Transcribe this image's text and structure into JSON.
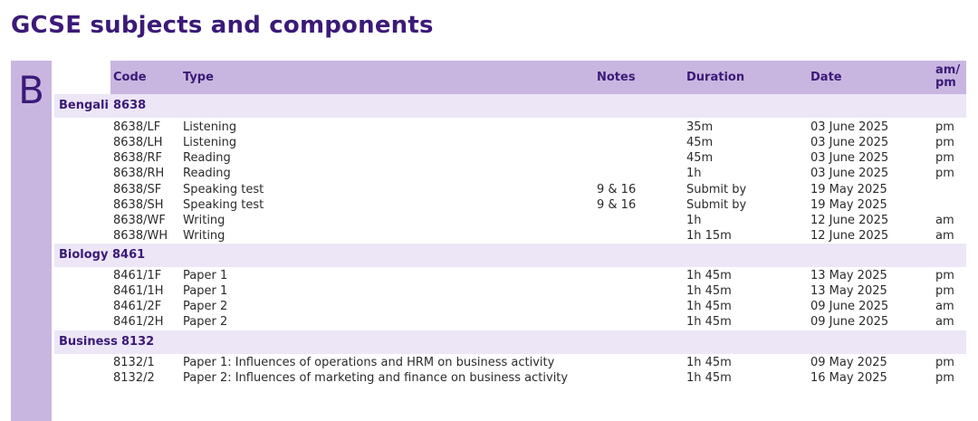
{
  "page_title": "GCSE subjects and components",
  "section_letter": "B",
  "columns": {
    "code": "Code",
    "type": "Type",
    "notes": "Notes",
    "duration": "Duration",
    "date": "Date",
    "ampm_line1": "am/",
    "ampm_line2": "pm"
  },
  "subjects": [
    {
      "name": "Bengali",
      "code": "8638",
      "rows": [
        {
          "code": "8638/LF",
          "type": "Listening",
          "notes": "",
          "duration": "35m",
          "date": "03 June 2025",
          "ampm": "pm"
        },
        {
          "code": "8638/LH",
          "type": "Listening",
          "notes": "",
          "duration": "45m",
          "date": "03 June 2025",
          "ampm": "pm"
        },
        {
          "code": "8638/RF",
          "type": "Reading",
          "notes": "",
          "duration": "45m",
          "date": "03 June 2025",
          "ampm": "pm"
        },
        {
          "code": "8638/RH",
          "type": "Reading",
          "notes": "",
          "duration": "1h",
          "date": "03 June 2025",
          "ampm": "pm"
        },
        {
          "code": "8638/SF",
          "type": "Speaking test",
          "notes": "9 & 16",
          "duration": "Submit by",
          "date": "19 May 2025",
          "ampm": ""
        },
        {
          "code": "8638/SH",
          "type": "Speaking test",
          "notes": "9 & 16",
          "duration": "Submit by",
          "date": "19 May 2025",
          "ampm": ""
        },
        {
          "code": "8638/WF",
          "type": "Writing",
          "notes": "",
          "duration": "1h",
          "date": "12 June 2025",
          "ampm": "am"
        },
        {
          "code": "8638/WH",
          "type": "Writing",
          "notes": "",
          "duration": "1h 15m",
          "date": "12 June 2025",
          "ampm": "am"
        }
      ]
    },
    {
      "name": "Biology",
      "code": "8461",
      "rows": [
        {
          "code": "8461/1F",
          "type": "Paper 1",
          "notes": "",
          "duration": "1h 45m",
          "date": "13 May 2025",
          "ampm": "pm"
        },
        {
          "code": "8461/1H",
          "type": "Paper 1",
          "notes": "",
          "duration": "1h 45m",
          "date": "13 May 2025",
          "ampm": "pm"
        },
        {
          "code": "8461/2F",
          "type": "Paper 2",
          "notes": "",
          "duration": "1h 45m",
          "date": "09 June 2025",
          "ampm": "am"
        },
        {
          "code": "8461/2H",
          "type": "Paper 2",
          "notes": "",
          "duration": "1h 45m",
          "date": "09 June 2025",
          "ampm": "am"
        }
      ]
    },
    {
      "name": "Business",
      "code": "8132",
      "rows": [
        {
          "code": "8132/1",
          "type": "Paper 1: Influences of operations and HRM on business activity",
          "notes": "",
          "duration": "1h 45m",
          "date": "09 May 2025",
          "ampm": "pm"
        },
        {
          "code": "8132/2",
          "type": "Paper 2: Influences of marketing and finance on business activity",
          "notes": "",
          "duration": "1h 45m",
          "date": "16 May 2025",
          "ampm": "pm"
        }
      ]
    }
  ]
}
